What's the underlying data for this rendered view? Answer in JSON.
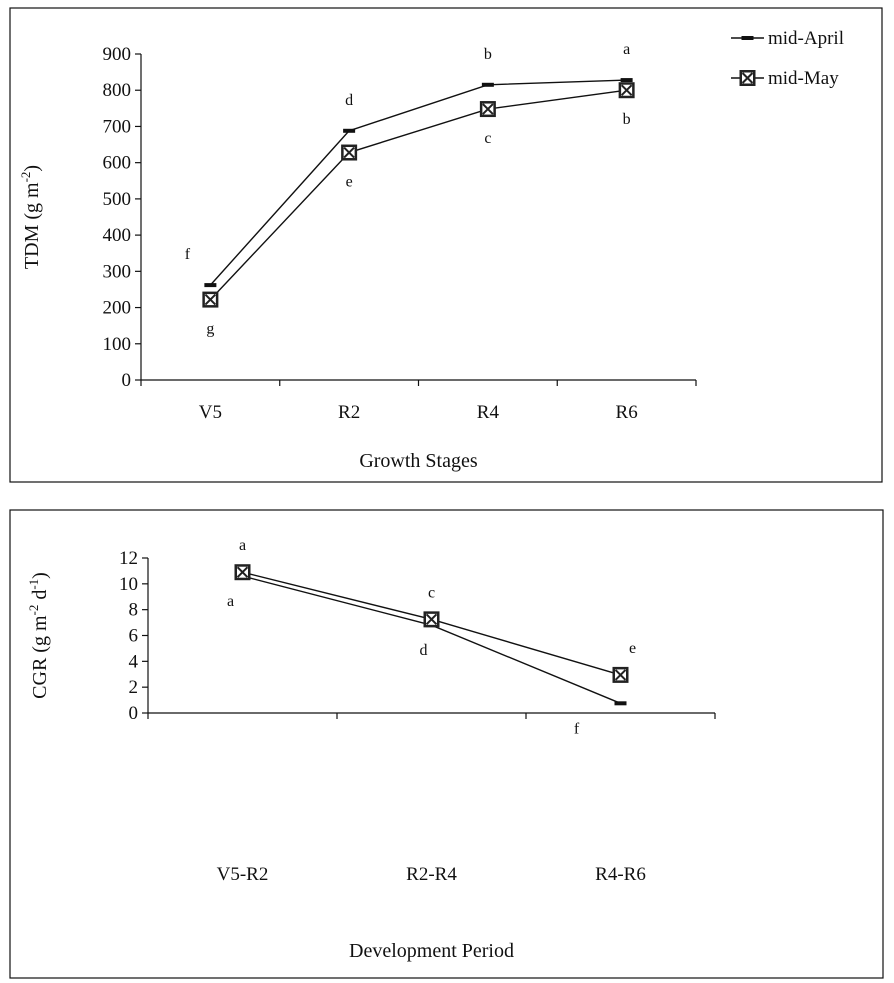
{
  "chart_data": [
    {
      "type": "line",
      "x_categories": [
        "V5",
        "R2",
        "R4",
        "R6"
      ],
      "xlabel": "Growth Stages",
      "ylabel": "TDM (g m-2)",
      "ylabel_parts": {
        "main": "TDM (g m",
        "sup": "-2",
        "close": ")"
      },
      "ylim": [
        0,
        900
      ],
      "yticks": [
        0,
        100,
        200,
        300,
        400,
        500,
        600,
        700,
        800,
        900
      ],
      "grid": false,
      "legend_position": "top-right outside",
      "series": [
        {
          "name": "mid-April",
          "marker": "dash",
          "color": "#111111",
          "values": [
            262,
            688,
            815,
            828
          ],
          "letters": [
            "f",
            "d",
            "b",
            "a"
          ],
          "letter_side": [
            "above",
            "above",
            "above",
            "above"
          ]
        },
        {
          "name": "mid-May",
          "marker": "boxed-x",
          "color": "#111111",
          "values": [
            222,
            628,
            748,
            800
          ],
          "letters": [
            "g",
            "e",
            "c",
            "b"
          ],
          "letter_side": [
            "below",
            "below",
            "below",
            "below"
          ]
        }
      ]
    },
    {
      "type": "line",
      "x_categories": [
        "V5-R2",
        "R2-R4",
        "R4-R6"
      ],
      "xlabel": "Development Period",
      "ylabel": "CGR (g m-2 d-1)",
      "ylabel_parts": {
        "main": "CGR (g m",
        "sup1": "-2",
        "mid": " d",
        "sup2": "-1",
        "close": ")"
      },
      "ylim": [
        0,
        12
      ],
      "yticks": [
        0,
        2,
        4,
        6,
        8,
        10,
        12
      ],
      "grid": false,
      "legend_position": "none",
      "series": [
        {
          "name": "mid-April",
          "marker": "dash",
          "color": "#111111",
          "values": [
            10.6,
            6.8,
            0.75
          ],
          "letters": [
            "a",
            "d",
            "f"
          ],
          "letter_side": [
            "below",
            "below",
            "below"
          ]
        },
        {
          "name": "mid-May",
          "marker": "boxed-x",
          "color": "#111111",
          "values": [
            10.9,
            7.25,
            2.95
          ],
          "letters": [
            "a",
            "c",
            "e"
          ],
          "letter_side": [
            "above",
            "above",
            "above"
          ]
        }
      ]
    }
  ]
}
